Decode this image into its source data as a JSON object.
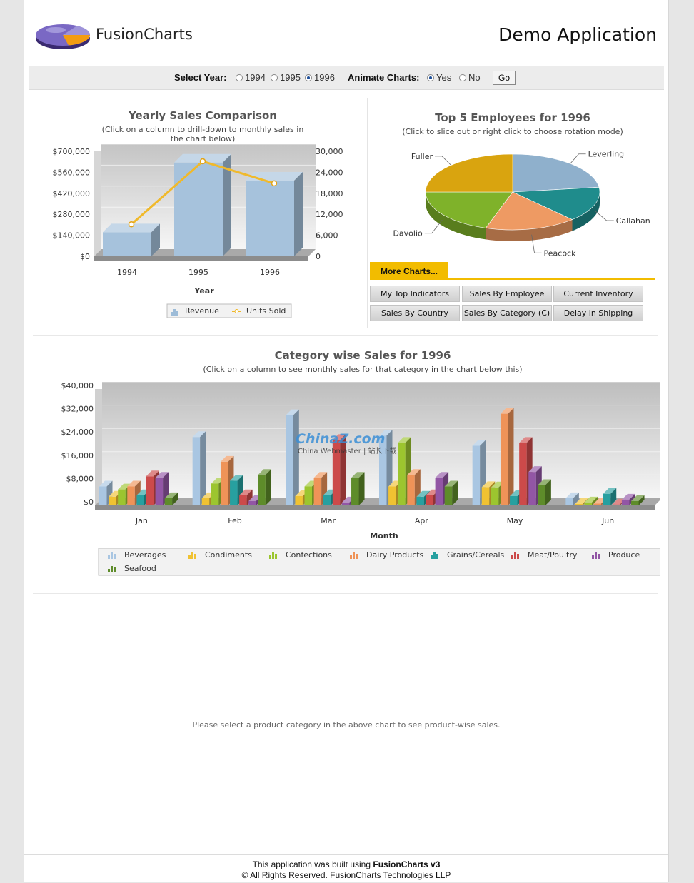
{
  "header": {
    "logo_text": "FusionCharts",
    "app_title": "Demo Application"
  },
  "controls": {
    "year_label": "Select Year:",
    "years": [
      "1994",
      "1995",
      "1996"
    ],
    "selected_year": "1996",
    "animate_label": "Animate Charts:",
    "animate_options": [
      "Yes",
      "No"
    ],
    "animate_selected": "Yes",
    "go_label": "Go"
  },
  "yearly_chart": {
    "title": "Yearly Sales Comparison",
    "subtitle_lines": [
      "(Click on a column to drill-down to monthly sales in",
      "the chart below)"
    ],
    "chart_data": {
      "type": "bar",
      "categories": [
        "1994",
        "1995",
        "1996"
      ],
      "series": [
        {
          "name": "Revenue",
          "values": [
            160000,
            625000,
            505000
          ],
          "color": "#9dbcd8"
        },
        {
          "name": "Units Sold",
          "values": [
            7500,
            25500,
            19200
          ],
          "color": "#f0b92b"
        }
      ],
      "ylim": [
        0,
        700000
      ],
      "y2lim": [
        0,
        30000
      ],
      "yticks": [
        "$0",
        "$140,000",
        "$280,000",
        "$420,000",
        "$560,000",
        "$700,000"
      ],
      "y2ticks": [
        "0",
        "6,000",
        "12,000",
        "18,000",
        "24,000",
        "30,000"
      ],
      "xlabel": "Year"
    }
  },
  "pie_chart": {
    "title": "Top 5 Employees for 1996",
    "subtitle": "(Click to slice out or right click to choose rotation mode)",
    "chart_data": {
      "type": "pie",
      "labels": [
        "Leverling",
        "Callahan",
        "Peacock",
        "Davolio",
        "Fuller"
      ],
      "values": [
        23,
        15,
        17,
        20,
        25
      ],
      "colors": [
        "#8fb0cc",
        "#1f8c8c",
        "#ee9a63",
        "#7fb22a",
        "#d9a40f"
      ]
    }
  },
  "more_charts": {
    "tab_label": "More Charts...",
    "buttons": [
      "My Top Indicators",
      "Sales By Employee",
      "Current Inventory",
      "Sales By Country",
      "Sales By Category (C)",
      "Delay in Shipping"
    ]
  },
  "category_chart": {
    "title": "Category wise Sales for 1996",
    "subtitle": "(Click on a column to see monthly sales for that category in the chart below this)",
    "chart_data": {
      "type": "bar",
      "categories": [
        "Jan",
        "Feb",
        "Mar",
        "Apr",
        "May",
        "Jun"
      ],
      "series": [
        {
          "name": "Beverages",
          "values": [
            6500,
            23500,
            31000,
            24000,
            20500,
            2500
          ],
          "color": "#a9c6e2"
        },
        {
          "name": "Condiments",
          "values": [
            3000,
            2500,
            3200,
            6500,
            6300,
            500
          ],
          "color": "#f0c232"
        },
        {
          "name": "Confections",
          "values": [
            5500,
            7500,
            6500,
            21500,
            6200,
            1000
          ],
          "color": "#9cc52f"
        },
        {
          "name": "Dairy Products",
          "values": [
            6500,
            15000,
            9500,
            10500,
            31500,
            600
          ],
          "color": "#ef9358"
        },
        {
          "name": "Grains/Cereals",
          "values": [
            3500,
            8500,
            3500,
            3000,
            3200,
            4000
          ],
          "color": "#27a0a0"
        },
        {
          "name": "Meat/Poultry",
          "values": [
            10000,
            3500,
            22500,
            3500,
            21500,
            300
          ],
          "color": "#cc4a4a"
        },
        {
          "name": "Produce",
          "values": [
            9500,
            1500,
            1000,
            9500,
            11500,
            2000
          ],
          "color": "#9256a5"
        },
        {
          "name": "Seafood",
          "values": [
            2500,
            10500,
            9500,
            6500,
            7000,
            1500
          ],
          "color": "#5e8c2a"
        }
      ],
      "ylim": [
        0,
        40000
      ],
      "yticks": [
        "$0",
        "$8,000",
        "$16,000",
        "$24,000",
        "$32,000",
        "$40,000"
      ],
      "xlabel": "Month"
    }
  },
  "placeholder_text": "Please select a product category in the above chart to see product-wise sales.",
  "footer": {
    "line1_prefix": "This application was built using ",
    "line1_bold": "FusionCharts v3",
    "line2": "© All Rights Reserved. FusionCharts Technologies LLP"
  },
  "watermark": {
    "text1": "ChinaZ.com",
    "text2": "China Webmaster | 站长下载"
  }
}
